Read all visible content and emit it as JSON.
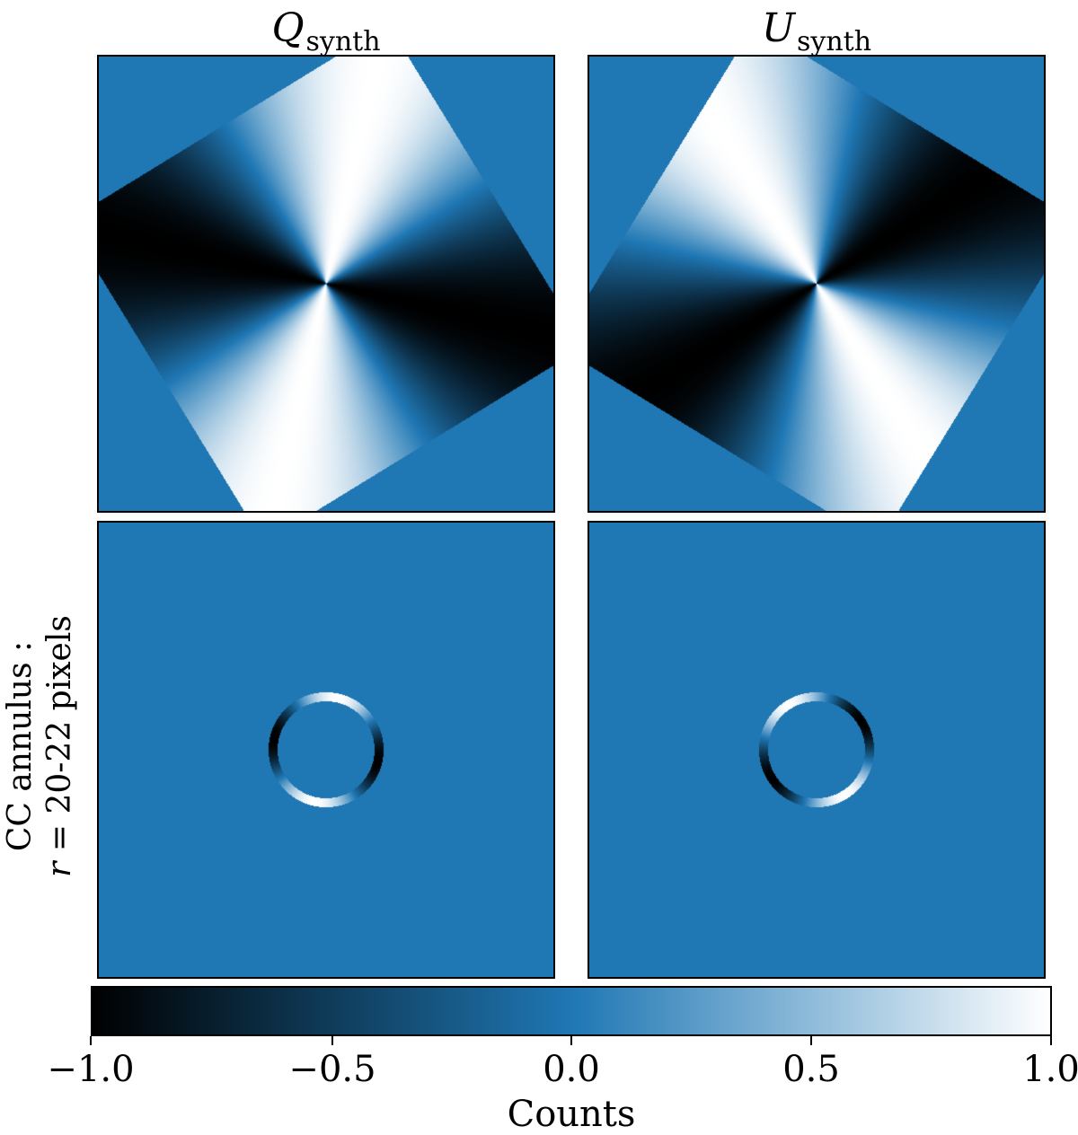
{
  "chart_data": [
    {
      "type": "heatmap",
      "title": "Q_synth",
      "title_main": "Q",
      "title_sub": "synth",
      "row": 1,
      "pattern": "Q map of a rotated square, azimuthal cos(2φ) pattern about center",
      "value_range": [
        -1.0,
        1.0
      ],
      "background_value": 0.0
    },
    {
      "type": "heatmap",
      "title": "U_synth",
      "title_main": "U",
      "title_sub": "synth",
      "row": 1,
      "pattern": "U map of a rotated square, azimuthal sin(2φ) pattern about center",
      "value_range": [
        -1.0,
        1.0
      ],
      "background_value": 0.0
    },
    {
      "type": "heatmap",
      "row": 2,
      "pattern": "Q values inside CC annulus r = 20-22 pixels",
      "annulus_radius_px": [
        20,
        22
      ],
      "value_range": [
        -1.0,
        1.0
      ],
      "background_value": 0.0
    },
    {
      "type": "heatmap",
      "row": 2,
      "pattern": "U values inside CC annulus r = 20-22 pixels",
      "annulus_radius_px": [
        20,
        22
      ],
      "value_range": [
        -1.0,
        1.0
      ],
      "background_value": 0.0
    }
  ],
  "row_label": {
    "line1": "CC annulus :",
    "line2_var": "r",
    "line2_rest": " = 20-22 pixels"
  },
  "colorbar": {
    "label": "Counts",
    "range": [
      -1.0,
      1.0
    ],
    "ticks": [
      -1.0,
      -0.5,
      0.0,
      0.5,
      1.0
    ],
    "tick_labels": [
      "−1.0",
      "−0.5",
      "0.0",
      "0.5",
      "1.0"
    ],
    "colors": {
      "low": "#000000",
      "mid": "#1f77b4",
      "high": "#ffffff"
    }
  }
}
